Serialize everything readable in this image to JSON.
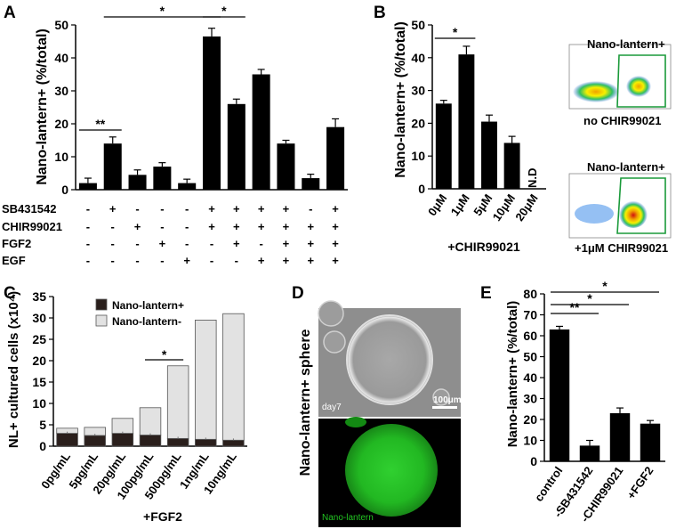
{
  "chart_data": [
    {
      "panel": "A",
      "type": "bar",
      "ylabel": "Nano-lantern+ (%/total)",
      "ylim": [
        0,
        50
      ],
      "yticks": [
        "0",
        "10",
        "20",
        "30",
        "40",
        "50"
      ],
      "values": [
        2,
        14,
        4.5,
        7,
        2,
        46.5,
        26,
        35,
        14,
        3.5,
        19
      ],
      "errors": [
        1.5,
        2,
        1.5,
        1.2,
        1.2,
        2.5,
        1.5,
        1.5,
        1,
        1.2,
        2.5
      ],
      "conditions": [
        {
          "label": "SB431542",
          "signs": [
            "-",
            "+",
            "-",
            "-",
            "-",
            "+",
            "+",
            "+",
            "+",
            "-",
            "+"
          ]
        },
        {
          "label": "CHIR99021",
          "signs": [
            "-",
            "-",
            "+",
            "-",
            "-",
            "+",
            "+",
            "+",
            "+",
            "+",
            "+"
          ]
        },
        {
          "label": "FGF2",
          "signs": [
            "-",
            "-",
            "-",
            "+",
            "-",
            "-",
            "+",
            "-",
            "+",
            "+",
            "+"
          ]
        },
        {
          "label": "EGF",
          "signs": [
            "-",
            "-",
            "-",
            "-",
            "+",
            "-",
            "-",
            "+",
            "+",
            "+",
            "+"
          ]
        }
      ],
      "significance": [
        {
          "from": 0,
          "to": 1,
          "label": "**"
        },
        {
          "from": 1,
          "to": 5,
          "label": "*"
        },
        {
          "from": 5,
          "to": 6,
          "label": "*"
        }
      ]
    },
    {
      "panel": "B",
      "type": "bar",
      "ylabel": "Nano-lantern+ (%/total)",
      "xlabel": "+CHIR99021",
      "ylim": [
        0,
        50
      ],
      "yticks": [
        "0",
        "10",
        "20",
        "30",
        "40",
        "50"
      ],
      "categories": [
        "0μM",
        "1μM",
        "5μM",
        "10μM",
        "20μM"
      ],
      "values": [
        26,
        41,
        20.5,
        14,
        null
      ],
      "errors": [
        1,
        2.5,
        2,
        2,
        null
      ],
      "annotation": "N.D",
      "significance": [
        {
          "from": 0,
          "to": 1,
          "label": "*"
        }
      ]
    },
    {
      "panel": "C",
      "type": "bar",
      "stacked": true,
      "ylabel": "NL+ cultured cells (x10⁴)",
      "xlabel": "+FGF2",
      "ylim": [
        0,
        35
      ],
      "yticks": [
        "0",
        "5",
        "10",
        "15",
        "20",
        "25",
        "30",
        "35"
      ],
      "categories": [
        "0pg/mL",
        "5pg/mL",
        "20pg/mL",
        "100pg/mL",
        "500pg/mL",
        "1ng/mL",
        "10ng/mL"
      ],
      "series": [
        {
          "name": "Nano-lantern+",
          "color": "#2a1f1c",
          "values": [
            3,
            2.5,
            3,
            2.6,
            1.8,
            1.6,
            1.4
          ]
        },
        {
          "name": "Nano-lantern-",
          "color": "#e2e2e2",
          "values": [
            1.2,
            1.9,
            3.5,
            6.4,
            17.0,
            27.9,
            29.6
          ]
        }
      ],
      "significance": [
        {
          "from": 3,
          "to": 4,
          "label": "*"
        }
      ],
      "legend_position": "top-left"
    },
    {
      "panel": "E",
      "type": "bar",
      "ylabel": "Nano-lantern+ (%/total)",
      "ylim": [
        0,
        80
      ],
      "yticks": [
        "0",
        "10",
        "20",
        "30",
        "40",
        "50",
        "60",
        "70",
        "80"
      ],
      "categories": [
        "control",
        "-SB431542",
        "-CHIR99021",
        "+FGF2"
      ],
      "values": [
        63,
        7.5,
        23,
        18
      ],
      "errors": [
        1.5,
        2.5,
        2.5,
        1.5
      ],
      "significance": [
        {
          "from": 0,
          "to": 1,
          "label": "**"
        },
        {
          "from": 0,
          "to": 2,
          "label": "*"
        },
        {
          "from": 0,
          "to": 3,
          "label": "*"
        }
      ]
    }
  ],
  "panels": {
    "A": {
      "letter": "A"
    },
    "B": {
      "letter": "B",
      "flow_top": {
        "gate_label": "Nano-lantern+",
        "caption": "no CHIR99021"
      },
      "flow_bottom": {
        "gate_label": "Nano-lantern+",
        "caption": "+1μM CHIR99021"
      }
    },
    "C": {
      "letter": "C"
    },
    "D": {
      "letter": "D",
      "ylabel": "Nano-lantern+ sphere",
      "day_label": "day7",
      "scale_label": "100μm",
      "fluor_label": "Nano-lantern"
    },
    "E": {
      "letter": "E"
    }
  },
  "colors": {
    "bar": "#000000",
    "fluor_green": "#22c422",
    "gate": "#1a9a3a"
  }
}
